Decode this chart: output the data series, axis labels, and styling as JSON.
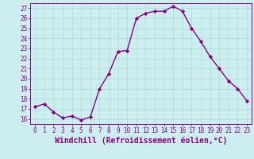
{
  "x": [
    0,
    1,
    2,
    3,
    4,
    5,
    6,
    7,
    8,
    9,
    10,
    11,
    12,
    13,
    14,
    15,
    16,
    17,
    18,
    19,
    20,
    21,
    22,
    23
  ],
  "y": [
    17.2,
    17.5,
    16.7,
    16.1,
    16.3,
    15.9,
    16.2,
    19.0,
    20.5,
    22.7,
    22.8,
    26.0,
    26.5,
    26.7,
    26.7,
    27.2,
    26.7,
    25.0,
    23.7,
    22.2,
    21.0,
    19.8,
    19.0,
    17.8
  ],
  "line_color": "#880088",
  "marker": "D",
  "marker_size": 2.2,
  "bg_color": "#cceeee",
  "grid_color": "#aadddd",
  "ylim": [
    15.5,
    27.5
  ],
  "yticks": [
    16,
    17,
    18,
    19,
    20,
    21,
    22,
    23,
    24,
    25,
    26,
    27
  ],
  "xlim": [
    -0.5,
    23.5
  ],
  "xticks": [
    0,
    1,
    2,
    3,
    4,
    5,
    6,
    7,
    8,
    9,
    10,
    11,
    12,
    13,
    14,
    15,
    16,
    17,
    18,
    19,
    20,
    21,
    22,
    23
  ],
  "xtick_labels": [
    "0",
    "1",
    "2",
    "3",
    "4",
    "5",
    "6",
    "7",
    "8",
    "9",
    "10",
    "11",
    "12",
    "13",
    "14",
    "15",
    "16",
    "17",
    "18",
    "19",
    "20",
    "21",
    "22",
    "23"
  ],
  "xlabel": "Windchill (Refroidissement éolien,°C)",
  "tick_label_fontsize": 5.5,
  "xlabel_fontsize": 7.0,
  "line_width": 1.0
}
